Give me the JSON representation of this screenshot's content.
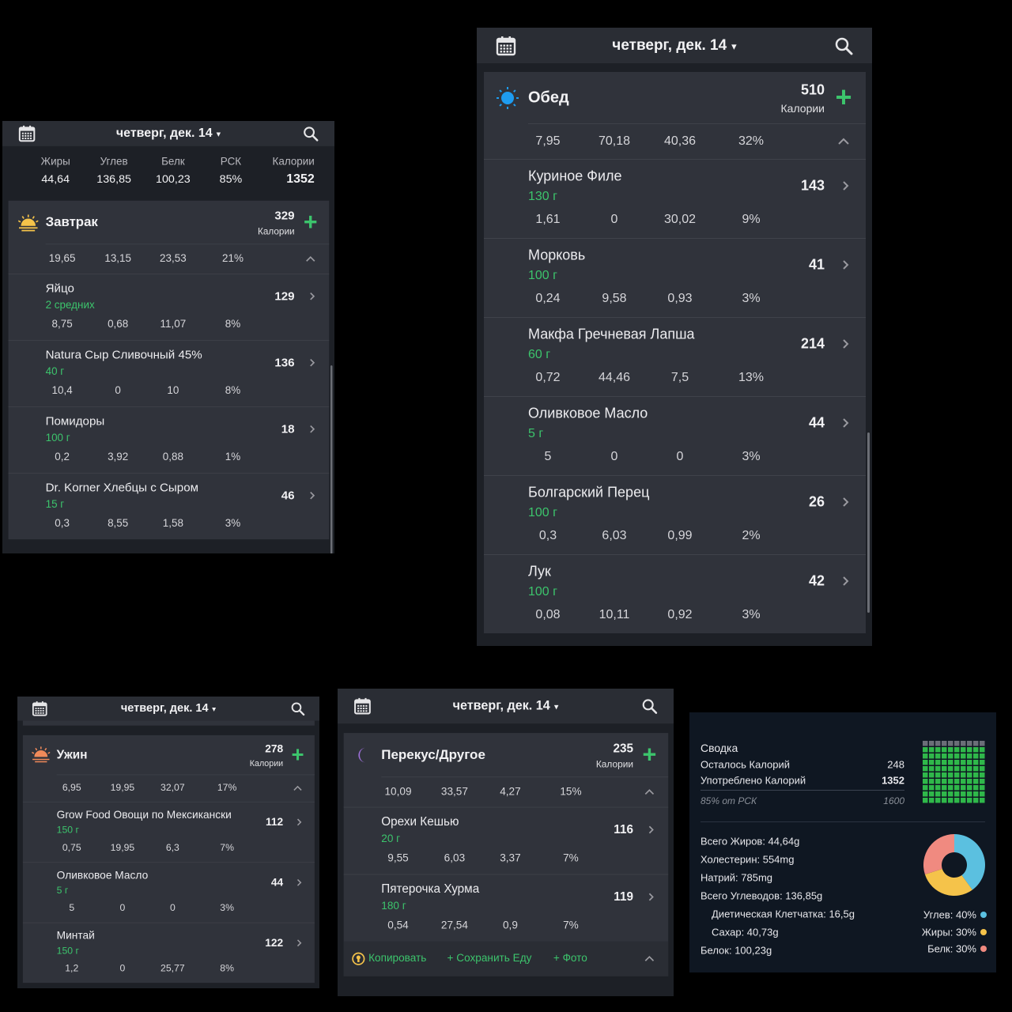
{
  "panels": [
    {
      "date": "четверг, дек. 14",
      "totals": {
        "labels": [
          "Жиры",
          "Углев",
          "Белк",
          "РСК",
          "Калории"
        ],
        "values": [
          "44,64",
          "136,85",
          "100,23",
          "85%",
          "1352"
        ]
      },
      "meal": {
        "name": "Завтрак",
        "calories": "329",
        "calories_label": "Калории",
        "macros": [
          "19,65",
          "13,15",
          "23,53",
          "21%"
        ],
        "items": [
          {
            "name": "Яйцо",
            "amount": "2 средних",
            "calories": "129",
            "macros": [
              "8,75",
              "0,68",
              "11,07",
              "8%"
            ]
          },
          {
            "name": "Natura Сыр Сливочный 45%",
            "amount": "40 г",
            "calories": "136",
            "macros": [
              "10,4",
              "0",
              "10",
              "8%"
            ]
          },
          {
            "name": "Помидоры",
            "amount": "100 г",
            "calories": "18",
            "macros": [
              "0,2",
              "3,92",
              "0,88",
              "1%"
            ]
          },
          {
            "name": "Dr. Korner Хлебцы с Сыром",
            "amount": "15 г",
            "calories": "46",
            "macros": [
              "0,3",
              "8,55",
              "1,58",
              "3%"
            ]
          }
        ]
      }
    },
    {
      "date": "четверг, дек. 14",
      "meal": {
        "name": "Обед",
        "calories": "510",
        "calories_label": "Калории",
        "macros": [
          "7,95",
          "70,18",
          "40,36",
          "32%"
        ],
        "items": [
          {
            "name": "Куриное Филе",
            "amount": "130 г",
            "calories": "143",
            "macros": [
              "1,61",
              "0",
              "30,02",
              "9%"
            ]
          },
          {
            "name": "Морковь",
            "amount": "100 г",
            "calories": "41",
            "macros": [
              "0,24",
              "9,58",
              "0,93",
              "3%"
            ]
          },
          {
            "name": "Макфа Гречневая Лапша",
            "amount": "60 г",
            "calories": "214",
            "macros": [
              "0,72",
              "44,46",
              "7,5",
              "13%"
            ]
          },
          {
            "name": "Оливковое Масло",
            "amount": "5 г",
            "calories": "44",
            "macros": [
              "5",
              "0",
              "0",
              "3%"
            ]
          },
          {
            "name": "Болгарский Перец",
            "amount": "100 г",
            "calories": "26",
            "macros": [
              "0,3",
              "6,03",
              "0,99",
              "2%"
            ]
          },
          {
            "name": "Лук",
            "amount": "100 г",
            "calories": "42",
            "macros": [
              "0,08",
              "10,11",
              "0,92",
              "3%"
            ]
          }
        ]
      }
    },
    {
      "date": "четверг, дек. 14",
      "meal": {
        "name": "Ужин",
        "calories": "278",
        "calories_label": "Калории",
        "macros": [
          "6,95",
          "19,95",
          "32,07",
          "17%"
        ],
        "items": [
          {
            "name": "Grow Food  Овощи по Мексикански",
            "amount": "150 г",
            "calories": "112",
            "macros": [
              "0,75",
              "19,95",
              "6,3",
              "7%"
            ]
          },
          {
            "name": "Оливковое Масло",
            "amount": "5 г",
            "calories": "44",
            "macros": [
              "5",
              "0",
              "0",
              "3%"
            ]
          },
          {
            "name": "Минтай",
            "amount": "150 г",
            "calories": "122",
            "macros": [
              "1,2",
              "0",
              "25,77",
              "8%"
            ]
          }
        ]
      }
    },
    {
      "date": "четверг, дек. 14",
      "meal": {
        "name": "Перекус/Другое",
        "calories": "235",
        "calories_label": "Калории",
        "macros": [
          "10,09",
          "33,57",
          "4,27",
          "15%"
        ],
        "items": [
          {
            "name": "Орехи Кешью",
            "amount": "20 г",
            "calories": "116",
            "macros": [
              "9,55",
              "6,03",
              "3,37",
              "7%"
            ]
          },
          {
            "name": "Пятерочка Хурма",
            "amount": "180 г",
            "calories": "119",
            "macros": [
              "0,54",
              "27,54",
              "0,9",
              "7%"
            ]
          }
        ]
      },
      "footer": [
        "Копировать",
        "+ Сохранить Еду",
        "+ Фото"
      ]
    }
  ],
  "summary": {
    "title": "Сводка",
    "rows": [
      {
        "label": "Осталось Калорий",
        "value": "248"
      },
      {
        "label": "Употреблено Калорий",
        "value": "1352"
      },
      {
        "label": "85% от РСК",
        "value": "1600"
      }
    ],
    "nutrients": [
      "Всего Жиров: 44,64g",
      "Холестерин: 554mg",
      "Натрий: 785mg",
      "Всего Углеводов: 136,85g",
      "Диетическая Клетчатка: 16,5g",
      "Сахар: 40,73g",
      "Белок: 100,23g"
    ],
    "legend": [
      {
        "label": "Углев: 40%",
        "value": 40,
        "color": "#5bc0e0"
      },
      {
        "label": "Жиры: 30%",
        "value": 30,
        "color": "#f5c34a"
      },
      {
        "label": "Белк: 30%",
        "value": 30,
        "color": "#f08a80"
      }
    ]
  }
}
